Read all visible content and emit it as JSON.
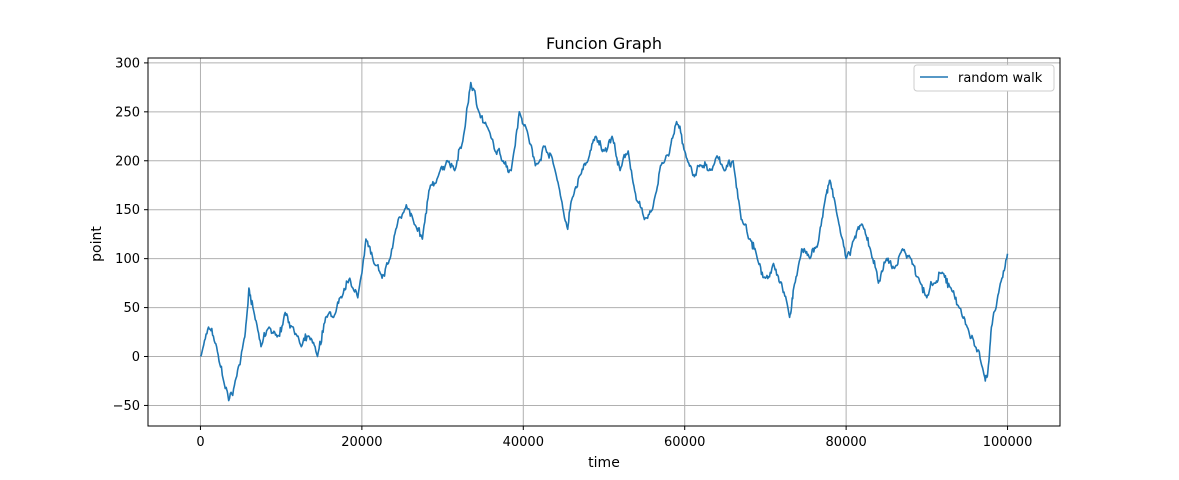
{
  "chart_data": {
    "type": "line",
    "title": "Funcion Graph",
    "xlabel": "time",
    "ylabel": "point",
    "xlim": [
      -6500,
      106500
    ],
    "ylim": [
      -71,
      305
    ],
    "grid": true,
    "legend_position": "top-right",
    "x_ticks": [
      0,
      20000,
      40000,
      60000,
      80000,
      100000
    ],
    "x_tick_labels": [
      "0",
      "20000",
      "40000",
      "60000",
      "80000",
      "100000"
    ],
    "y_ticks": [
      -50,
      0,
      50,
      100,
      150,
      200,
      250,
      300
    ],
    "y_tick_labels": [
      "−50",
      "0",
      "50",
      "100",
      "150",
      "200",
      "250",
      "300"
    ],
    "series": [
      {
        "name": "random walk",
        "color": "#1f77b4",
        "x": [
          0,
          1000,
          2000,
          3000,
          3500,
          4500,
          5500,
          6000,
          6500,
          7500,
          8500,
          9500,
          10500,
          11500,
          12500,
          13500,
          14500,
          15500,
          16500,
          17500,
          18500,
          19500,
          20500,
          21500,
          22500,
          23500,
          24500,
          25500,
          26500,
          27500,
          28500,
          29500,
          30500,
          31500,
          32500,
          33500,
          34500,
          35500,
          36500,
          37500,
          38500,
          39500,
          40500,
          41500,
          42500,
          43500,
          44500,
          45500,
          46000,
          47000,
          48000,
          49000,
          50000,
          51000,
          52000,
          53000,
          54000,
          55000,
          56000,
          57000,
          58000,
          59000,
          60000,
          61000,
          62000,
          63000,
          64000,
          65000,
          66000,
          67000,
          68000,
          69000,
          70000,
          71000,
          72000,
          73000,
          73500,
          74500,
          75500,
          76500,
          77500,
          78000,
          79000,
          80000,
          81000,
          82000,
          83000,
          84000,
          85000,
          86000,
          87000,
          88000,
          89000,
          90000,
          91000,
          92000,
          93000,
          94000,
          95000,
          96000,
          97000,
          97500,
          98000,
          99000,
          100000
        ],
        "y": [
          0,
          30,
          10,
          -30,
          -45,
          -20,
          20,
          70,
          50,
          10,
          30,
          20,
          45,
          30,
          10,
          20,
          0,
          40,
          40,
          60,
          80,
          60,
          120,
          95,
          80,
          100,
          140,
          155,
          135,
          120,
          175,
          185,
          200,
          190,
          220,
          280,
          250,
          235,
          210,
          200,
          190,
          250,
          230,
          195,
          215,
          205,
          170,
          130,
          160,
          185,
          200,
          225,
          210,
          225,
          190,
          210,
          160,
          140,
          150,
          195,
          205,
          240,
          210,
          185,
          195,
          190,
          205,
          190,
          200,
          140,
          120,
          100,
          80,
          95,
          75,
          40,
          70,
          110,
          100,
          115,
          165,
          180,
          140,
          100,
          120,
          135,
          110,
          75,
          100,
          90,
          110,
          100,
          80,
          60,
          75,
          85,
          70,
          50,
          30,
          10,
          -15,
          -20,
          30,
          70,
          105
        ]
      }
    ]
  }
}
